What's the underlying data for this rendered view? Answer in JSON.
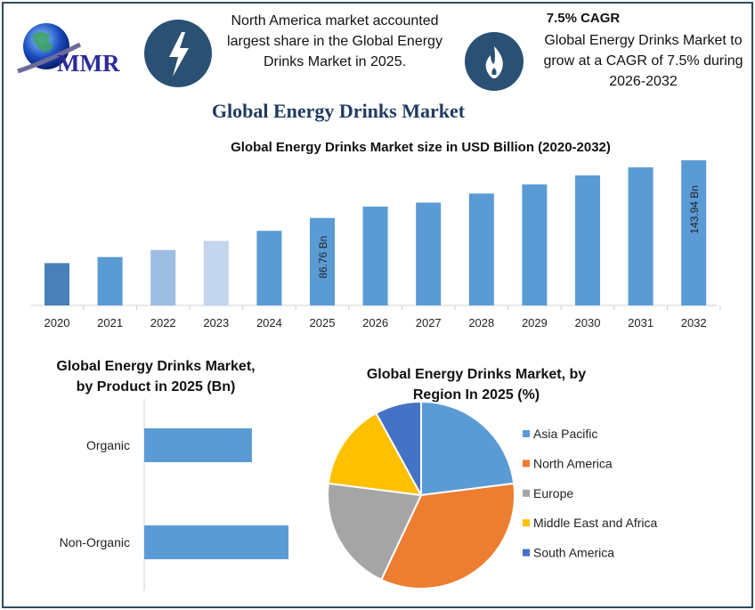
{
  "logo": {
    "text": "MMR"
  },
  "info_left": {
    "icon": "lightning-bolt-icon",
    "text": "North America market accounted largest share in the Global Energy Drinks Market in 2025."
  },
  "info_right": {
    "icon": "flame-icon",
    "heading": "7.5% CAGR",
    "text": "Global Energy Drinks Market to grow at a CAGR of 7.5% during 2026-2032"
  },
  "main_title": "Global Energy Drinks Market",
  "colors": {
    "bar": "#5b9bd5",
    "frame": "#2f4b5b",
    "icon_circle": "#2a5174",
    "title": "#1f3a5f"
  },
  "chart_data": [
    {
      "type": "bar",
      "title": "Global Energy Drinks Market size in USD Billion (2020-2032)",
      "categories": [
        "2020",
        "2021",
        "2022",
        "2023",
        "2024",
        "2025",
        "2026",
        "2027",
        "2028",
        "2029",
        "2030",
        "2031",
        "2032"
      ],
      "values": [
        42,
        48,
        55,
        64,
        74,
        86.76,
        98,
        102,
        111,
        120,
        129,
        137,
        143.94
      ],
      "bar_colors": [
        "#4a80b8",
        "#5b9bd5",
        "#9dbde2",
        "#c3d6ee",
        "#5b9bd5",
        "#5b9bd5",
        "#5b9bd5",
        "#5b9bd5",
        "#5b9bd5",
        "#5b9bd5",
        "#5b9bd5",
        "#5b9bd5",
        "#5b9bd5"
      ],
      "data_labels": {
        "2025": "86.76 Bn",
        "2032": "143.94 Bn"
      },
      "xlabel": "",
      "ylabel": "",
      "grid": false
    },
    {
      "type": "bar",
      "orientation": "horizontal",
      "title": "Global Energy Drinks Market, by Product in 2025 (Bn)",
      "categories": [
        "Organic",
        "Non-Organic"
      ],
      "values": [
        37.1,
        49.7
      ],
      "color": "#5b9bd5"
    },
    {
      "type": "pie",
      "title": "Global Energy Drinks Market, by Region In 2025 (%)",
      "labels": [
        "Asia Pacific",
        "North America",
        "Europe",
        "Middle East and Africa",
        "South America"
      ],
      "values": [
        23,
        34,
        20,
        15,
        8
      ],
      "colors": [
        "#5b9bd5",
        "#ed7d31",
        "#a5a5a5",
        "#ffc000",
        "#4472c4"
      ],
      "legend": "right"
    }
  ]
}
